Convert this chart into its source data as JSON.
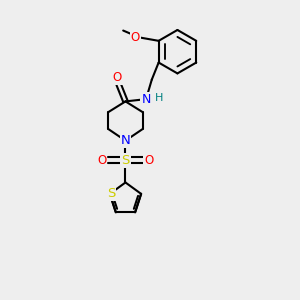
{
  "bg_color": "#eeeeee",
  "bond_color": "#000000",
  "bond_width": 1.5,
  "atom_colors": {
    "O": "#ff0000",
    "N": "#0000ff",
    "S_sulfonyl": "#cccc00",
    "S_thiophene": "#cccc00",
    "H": "#008080"
  },
  "font_size_atoms": 8.5,
  "font_size_H": 8,
  "xlim": [
    0,
    10
  ],
  "ylim": [
    0,
    13
  ]
}
